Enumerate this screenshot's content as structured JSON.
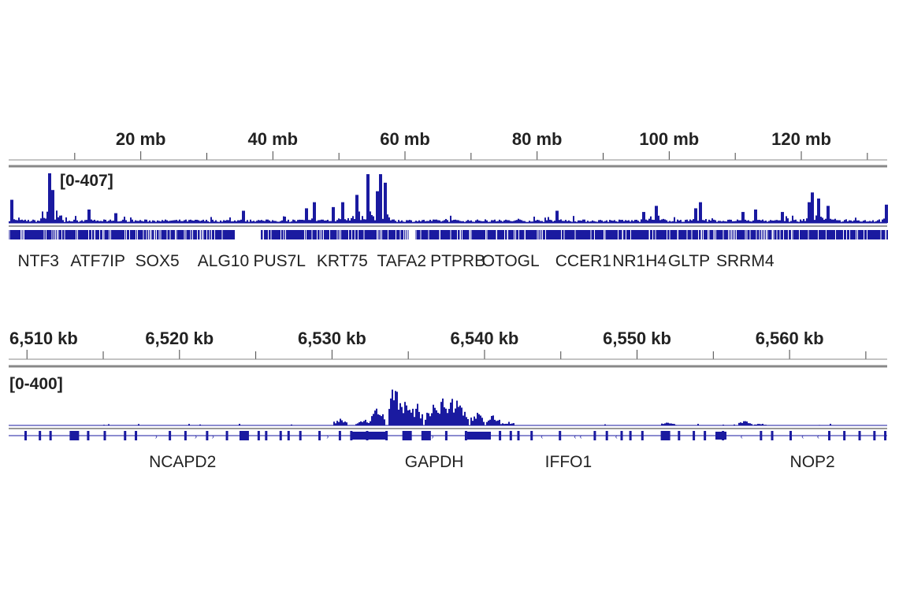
{
  "chart_data": [
    {
      "type": "area",
      "view": "genome-wide",
      "xunit": "mb",
      "xlim": [
        0,
        133
      ],
      "ticks": [
        "20 mb",
        "40 mb",
        "60 mb",
        "80 mb",
        "100 mb",
        "120 mb"
      ],
      "tick_values": [
        20,
        40,
        60,
        80,
        100,
        120
      ],
      "data_range": "[0-407]",
      "ylim": [
        0,
        407
      ],
      "color": "#1a1aa0",
      "peaks": [
        [
          0.3,
          190
        ],
        [
          6.2,
          407
        ],
        [
          6.6,
          270
        ],
        [
          12,
          110
        ],
        [
          16,
          80
        ],
        [
          35.5,
          100
        ],
        [
          45,
          120
        ],
        [
          46.2,
          170
        ],
        [
          49,
          130
        ],
        [
          50.5,
          170
        ],
        [
          52.5,
          230
        ],
        [
          54.3,
          400
        ],
        [
          55.8,
          260
        ],
        [
          56.3,
          400
        ],
        [
          57,
          330
        ],
        [
          83,
          100
        ],
        [
          96,
          90
        ],
        [
          98,
          140
        ],
        [
          104,
          120
        ],
        [
          104.5,
          170
        ],
        [
          111,
          90
        ],
        [
          113,
          110
        ],
        [
          117,
          90
        ],
        [
          121,
          170
        ],
        [
          121.5,
          250
        ],
        [
          122.5,
          200
        ],
        [
          124,
          140
        ],
        [
          132.7,
          150
        ]
      ],
      "genes": [
        "NTF3",
        "ATF7IP",
        "SOX5",
        "ALG10",
        "PUS7L",
        "KRT75",
        "TAFA2",
        "PTPRB",
        "OTOGL",
        "CCER1",
        "NR1H4",
        "GLTP",
        "SRRM4"
      ],
      "gene_positions_mb": [
        4.5,
        13.5,
        22.5,
        32.5,
        41,
        50.5,
        59.5,
        68,
        76,
        87,
        95.5,
        103,
        111.5
      ]
    },
    {
      "type": "area",
      "view": "locus",
      "xunit": "kb",
      "xlim": [
        6508.8,
        6566.4
      ],
      "ticks": [
        "6,510 kb",
        "6,520 kb",
        "6,530 kb",
        "6,540 kb",
        "6,550 kb",
        "6,560 kb"
      ],
      "tick_values": [
        6510,
        6520,
        6530,
        6540,
        6550,
        6560
      ],
      "data_range": "[0-400]",
      "ylim": [
        0,
        400
      ],
      "color": "#1a1aa0",
      "peaks": [
        [
          6530.5,
          50
        ],
        [
          6532,
          60
        ],
        [
          6533,
          150
        ],
        [
          6534.1,
          330
        ],
        [
          6534.6,
          220
        ],
        [
          6535.5,
          170
        ],
        [
          6536.5,
          180
        ],
        [
          6537.3,
          220
        ],
        [
          6538,
          240
        ],
        [
          6538.5,
          160
        ],
        [
          6539.5,
          110
        ],
        [
          6540.5,
          80
        ],
        [
          6541.5,
          30
        ],
        [
          6552,
          25
        ],
        [
          6557,
          40
        ],
        [
          6558,
          15
        ]
      ],
      "genes": [
        "NCAPD2",
        "GAPDH",
        "IFFO1",
        "NOP2"
      ],
      "gene_positions_kb": [
        6520.2,
        6536.7,
        6545.5,
        6561.5
      ]
    }
  ]
}
